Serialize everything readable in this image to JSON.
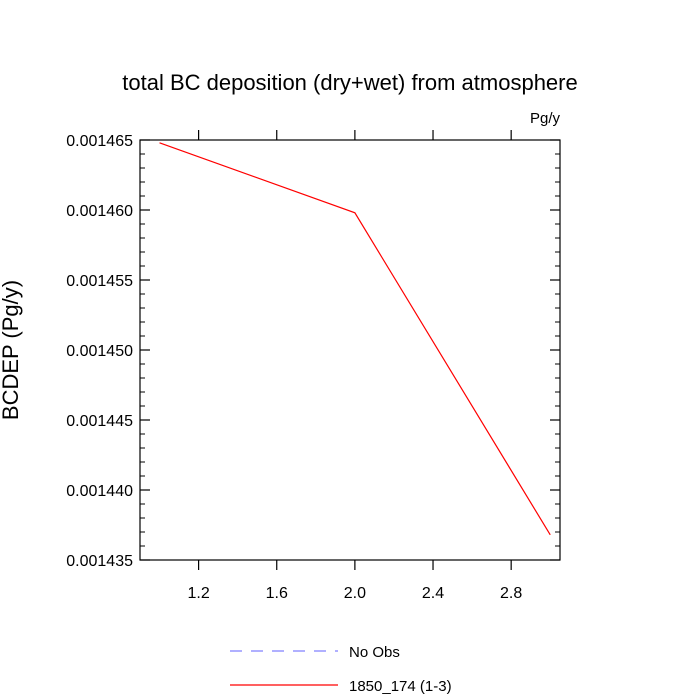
{
  "chart_data": {
    "type": "line",
    "title": "total BC deposition (dry+wet) from atmosphere",
    "units_label": "Pg/y",
    "xlabel": "",
    "ylabel": "BCDEP  (Pg/y)",
    "xlim": [
      0.9,
      3.05
    ],
    "ylim": [
      0.001435,
      0.001465
    ],
    "x_ticks": [
      1.2,
      1.6,
      2.0,
      2.4,
      2.8
    ],
    "x_tick_labels": [
      "1.2",
      "1.6",
      "2.0",
      "2.4",
      "2.8"
    ],
    "y_ticks": [
      0.001435,
      0.00144,
      0.001445,
      0.00145,
      0.001455,
      0.00146,
      0.001465
    ],
    "y_tick_labels": [
      "0.001435",
      "0.001440",
      "0.001445",
      "0.001450",
      "0.001455",
      "0.001460",
      "0.001465"
    ],
    "grid": false,
    "legend_position": "bottom",
    "series": [
      {
        "name": "No Obs",
        "color": "#8080ff",
        "dash": "dashed",
        "x": [],
        "y": []
      },
      {
        "name": "1850_174 (1-3)",
        "color": "#ff0000",
        "dash": "solid",
        "x": [
          1,
          2,
          3
        ],
        "y": [
          0.0014648,
          0.0014598,
          0.0014368
        ]
      }
    ]
  }
}
